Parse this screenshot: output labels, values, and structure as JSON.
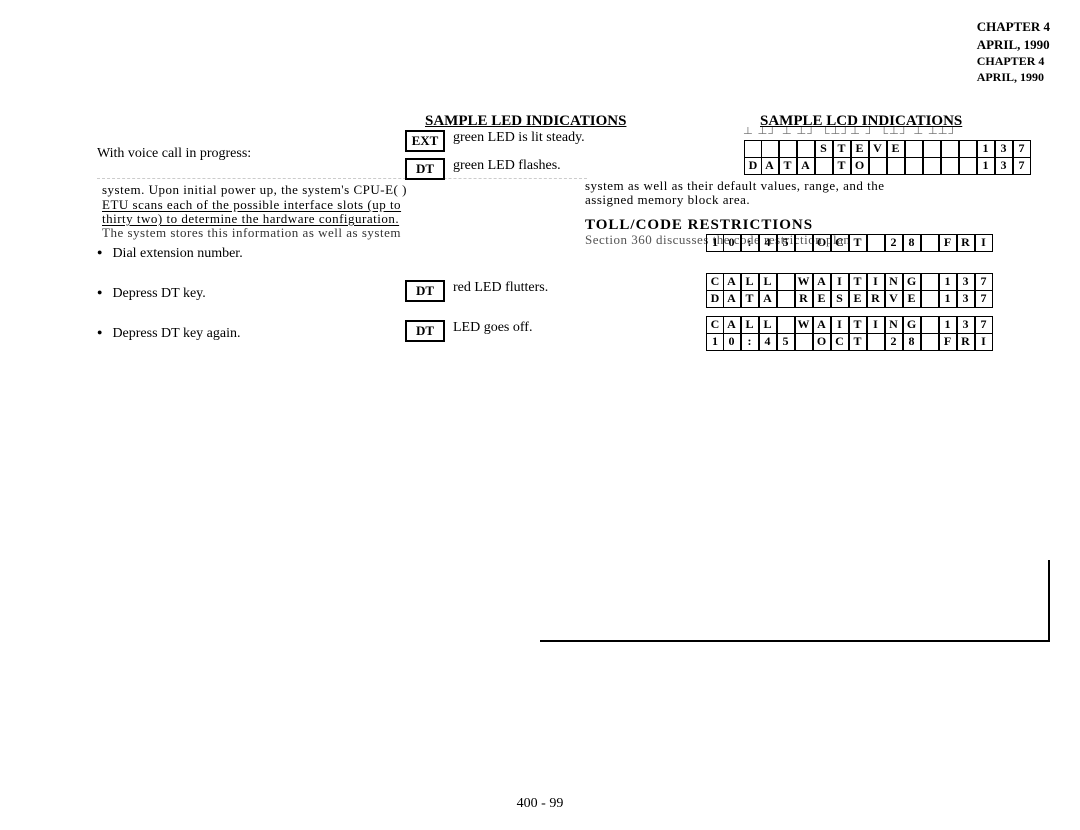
{
  "header": {
    "l1": "CHAPTER 4",
    "l2": "APRIL, 1990",
    "l3": "CHAPTER 4",
    "l4": "APRIL, 1990"
  },
  "titles": {
    "led": "SAMPLE LED INDICATIONS",
    "lcd": "SAMPLE LCD INDICATIONS",
    "toll": "TOLL/CODE RESTRICTIONS"
  },
  "left": {
    "voice": "With voice call in progress:",
    "b1": "Dial extension number.",
    "b2": "Depress DT key.",
    "b3": "Depress DT key again."
  },
  "led": {
    "ext_box": "EXT",
    "ext_txt": "green LED is lit steady.",
    "dt1_box": "DT",
    "dt1_txt": "green LED flashes.",
    "dt2_box": "DT",
    "dt2_txt": "red LED flutters.",
    "dt3_box": "DT",
    "dt3_txt": "LED goes off."
  },
  "frag": {
    "f1": "system.  Upon initial power up, the system's CPU-E(  )",
    "f2": "ETU  scans  each  of  the  possible  interface  slots  (up  to",
    "f3": "thirty  two)  to  determine   the   hardware   configuration.",
    "f4": "The  system  stores  this  information  as  well  as  system",
    "g1": "system  as  well  as  their  default  values,  range,  and  the",
    "g2": "assigned memory block area.",
    "g3": "Section   360   discusses   the   code  restriction   plan"
  },
  "lcd_top": {
    "r1": [
      " ",
      " ",
      " ",
      " ",
      "S",
      "T",
      "E",
      "V",
      "E",
      " ",
      " ",
      " ",
      " ",
      "1",
      "3",
      "7"
    ],
    "r2": [
      "D",
      "A",
      "T",
      "A",
      " ",
      "T",
      "O",
      " ",
      " ",
      " ",
      " ",
      " ",
      " ",
      "1",
      "3",
      "7"
    ]
  },
  "lcd_a": {
    "r1": [
      "1",
      "0",
      ":",
      "4",
      "5",
      " ",
      "O",
      "C",
      "T",
      " ",
      "2",
      "8",
      " ",
      "F",
      "R",
      "I"
    ]
  },
  "lcd_b": {
    "r1": [
      "C",
      "A",
      "L",
      "L",
      " ",
      "W",
      "A",
      "I",
      "T",
      "I",
      "N",
      "G",
      " ",
      "1",
      "3",
      "7"
    ],
    "r2": [
      "D",
      "A",
      "T",
      "A",
      " ",
      "R",
      "E",
      "S",
      "E",
      "R",
      "V",
      "E",
      " ",
      "1",
      "3",
      "7"
    ]
  },
  "lcd_c": {
    "r1": [
      "C",
      "A",
      "L",
      "L",
      " ",
      "W",
      "A",
      "I",
      "T",
      "I",
      "N",
      "G",
      " ",
      "1",
      "3",
      "7"
    ],
    "r2": [
      "1",
      "0",
      ":",
      "4",
      "5",
      " ",
      "O",
      "C",
      "T",
      " ",
      "2",
      "8",
      " ",
      "F",
      "R",
      "I"
    ]
  },
  "footer": {
    "page": "400 - 99"
  }
}
